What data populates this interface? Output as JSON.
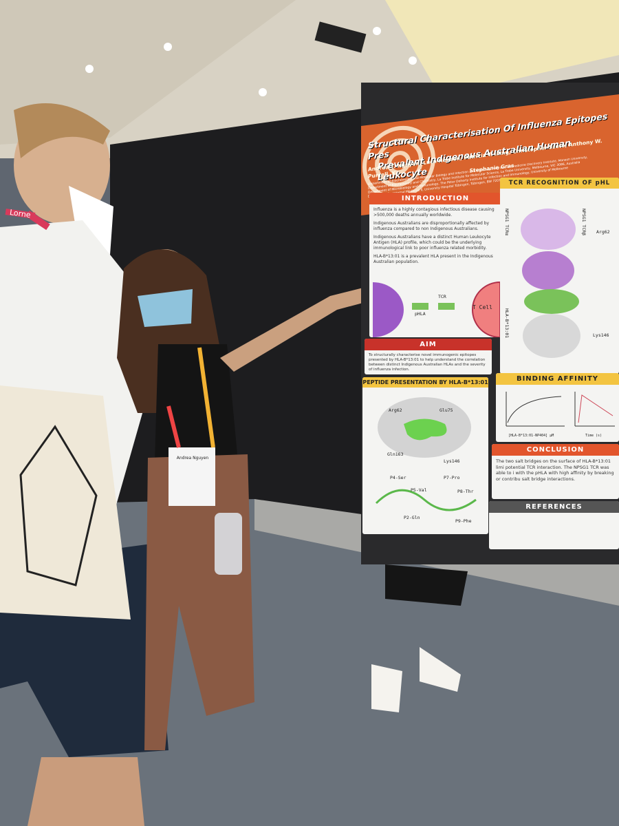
{
  "poster": {
    "title_lines": [
      "Structural Characterisation Of Influenza Epitopes Pres",
      "Prevalent Indigenous Australian Human Leukocyte"
    ],
    "authors": [
      "Andrea T. Nguyen, Luca Hensen, Patricia T. Illing, Christopher Szeto, Anthony W. Purcell, K",
      "Stephanie Gras"
    ],
    "affiliations": [
      "Department of Biochemistry and Molecular Biology and Infection and Immunity Program, Biomedicine Discovery Institute, Monash University,",
      "Department of Biochemistry and Chemistry, La Trobe Institute for Molecular Science, La Trobe University, Melbourne, VIC 3086, Australia",
      "Department of Microbiology and Immunology, The Peter Doherty Institute for Infection and Immunology, University of Melbourne",
      "Department for Internal Medicine II, University Hospital Tübingen, Tübingen, BW 72076, Germany"
    ],
    "introduction": {
      "heading": "INTRODUCTION",
      "bullets": [
        "Influenza is a highly contagious infectious disease causing >500,000 deaths annually worldwide.",
        "Indigenous Australians are disproportionally affected by influenza compared to non Indigenous Australians.",
        "Indigenous Australians have a distinct Human Leukocyte Antigen (HLA) profile, which could be the underlying immunological link to poor influenza related morbidity.",
        "HLA-B*13:01 is a prevalent HLA present in the Indigenous Australian population."
      ],
      "diagram": {
        "tcr": "TCR",
        "phla": "pHLA",
        "tcell": "T Cell"
      }
    },
    "aim": {
      "heading": "AIM",
      "text": "To structurally characterise novel immunogenic epitopes presented by HLA-B*13:01 to help understand the correlation between distinct Indigenous Australian HLAs and the severity of influenza infection."
    },
    "peptide": {
      "heading": "PEPTIDE PRESENTATION BY HLA-B*13:01",
      "residues": [
        "Arg62",
        "Glu75",
        "Gln163",
        "Lys146"
      ],
      "positions": [
        "P4-Ser",
        "P5-Val",
        "P7-Pro",
        "P8-Thr",
        "P2-Gln",
        "P9-Phe"
      ]
    },
    "tcr": {
      "heading": "TCR RECOGNITION OF pHL",
      "labels": [
        "NPSG1 TCRα",
        "NPSG1 TCRβ",
        "HLA-B*13:01",
        "Arg62",
        "Lys146"
      ]
    },
    "binding": {
      "heading": "BINDING AFFINITY",
      "xlabel": "[HLA-B*13:01-NP404] µM",
      "time": "Time (s)"
    },
    "conclusion": {
      "heading": "CONCLUSION",
      "text": "The two salt bridges on the surface of HLA-B*13:01 limi potential TCR interaction. The NPSG1 TCR was able to i with the pHLA with high affinity by breaking or contribu salt bridge interactions."
    },
    "references": {
      "heading": "REFERENCES"
    }
  },
  "lanyard": "Lorne",
  "badge": "Andrea Nguyen"
}
